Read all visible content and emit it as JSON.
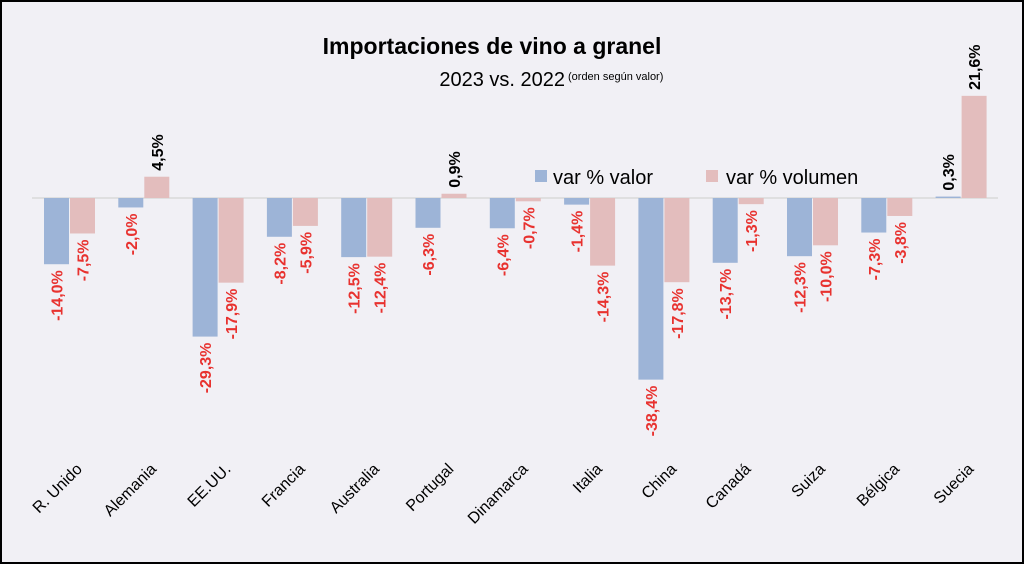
{
  "chart_data": {
    "type": "bar",
    "title": "Importaciones de vino a granel",
    "subtitle": "2023 vs. 2022",
    "subtitle_note": "(orden según valor)",
    "categories": [
      "R. Unido",
      "Alemania",
      "EE.UU.",
      "Francia",
      "Australia",
      "Portugal",
      "Dinamarca",
      "Italia",
      "China",
      "Canadá",
      "Suiza",
      "Bélgica",
      "Suecia"
    ],
    "series": [
      {
        "name": "var % valor",
        "color": "#9db4d7",
        "values": [
          -14.0,
          -2.0,
          -29.3,
          -8.2,
          -12.5,
          -6.3,
          -6.4,
          -1.4,
          -38.4,
          -13.7,
          -12.3,
          -7.3,
          0.3
        ],
        "labels": [
          "-14,0%",
          "-2,0%",
          "-29,3%",
          "-8,2%",
          "-12,5%",
          "-6,3%",
          "-6,4%",
          "-1,4%",
          "-38,4%",
          "-13,7%",
          "-12,3%",
          "-7,3%",
          "0,3%"
        ]
      },
      {
        "name": "var % volumen",
        "color": "#e3bdbd",
        "values": [
          -7.5,
          4.5,
          -17.9,
          -5.9,
          -12.4,
          0.9,
          -0.7,
          -14.3,
          -17.8,
          -1.3,
          -10.0,
          -3.8,
          21.6
        ],
        "labels": [
          "-7,5%",
          "4,5%",
          "-17,9%",
          "-5,9%",
          "-12,4%",
          "0,9%",
          "-0,7%",
          "-14,3%",
          "-17,8%",
          "-1,3%",
          "-10,0%",
          "-3,8%",
          "21,6%"
        ]
      }
    ],
    "negative_label_color": "#e8322f",
    "positive_label_color": "#000000",
    "legend_position": "top-right",
    "grid": false,
    "ylim": [
      -40,
      23
    ]
  }
}
